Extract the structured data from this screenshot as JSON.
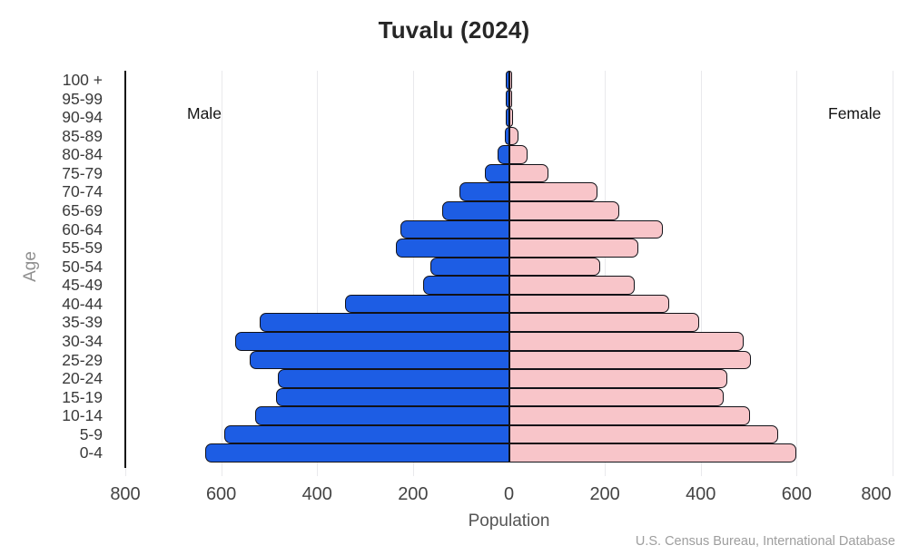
{
  "title": "Tuvalu (2024)",
  "labels": {
    "male": "Male",
    "female": "Female",
    "x_axis": "Population",
    "y_axis": "Age",
    "source": "U.S. Census Bureau, International Database"
  },
  "colors": {
    "male_fill": "#1d5de4",
    "female_fill": "#f8c5c9",
    "bar_border": "#121218",
    "grid": "#e9e9ec",
    "axis_spine": "#111111"
  },
  "chart_data": {
    "type": "bar",
    "subtype": "population-pyramid",
    "title": "Tuvalu (2024)",
    "xlabel": "Population",
    "ylabel": "Age",
    "xlim": [
      -800,
      800
    ],
    "x_tick_step": 200,
    "x_tick_labels": [
      "800",
      "600",
      "400",
      "200",
      "0",
      "200",
      "400",
      "600",
      "800"
    ],
    "grid": "vertical",
    "categories": [
      "100 +",
      "95-99",
      "90-94",
      "85-89",
      "80-84",
      "75-79",
      "70-74",
      "65-69",
      "60-64",
      "55-59",
      "50-54",
      "45-49",
      "40-44",
      "35-39",
      "30-34",
      "25-29",
      "20-24",
      "15-19",
      "10-14",
      "5-9",
      "0-4"
    ],
    "series": [
      {
        "name": "Male",
        "side": "left",
        "values": [
          1,
          3,
          6,
          9,
          23,
          50,
          103,
          139,
          227,
          235,
          164,
          179,
          342,
          519,
          570,
          541,
          482,
          485,
          529,
          594,
          633
        ]
      },
      {
        "name": "Female",
        "side": "right",
        "values": [
          2,
          4,
          8,
          19,
          38,
          83,
          185,
          230,
          321,
          270,
          190,
          263,
          334,
          397,
          489,
          505,
          455,
          448,
          503,
          561,
          599
        ]
      }
    ]
  }
}
